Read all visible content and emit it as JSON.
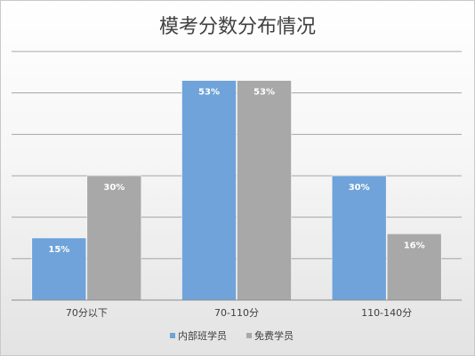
{
  "chart_data": {
    "type": "bar",
    "title": "模考分数分布情况",
    "categories": [
      "70分以下",
      "70-110分",
      "110-140分"
    ],
    "series": [
      {
        "name": "内部班学员",
        "values": [
          15,
          53,
          30
        ],
        "labels": [
          "15%",
          "53%",
          "30%"
        ],
        "color": "#6fa3d9"
      },
      {
        "name": "免费学员",
        "values": [
          30,
          53,
          16
        ],
        "labels": [
          "30%",
          "53%",
          "16%"
        ],
        "color": "#a8a8a8"
      }
    ],
    "ylim": [
      0,
      60
    ],
    "y_gridlines": [
      10,
      20,
      30,
      40,
      50,
      60
    ],
    "grid": true,
    "legend_position": "bottom",
    "background": "#ffffff",
    "gridline_color": "#a6a6a6"
  }
}
